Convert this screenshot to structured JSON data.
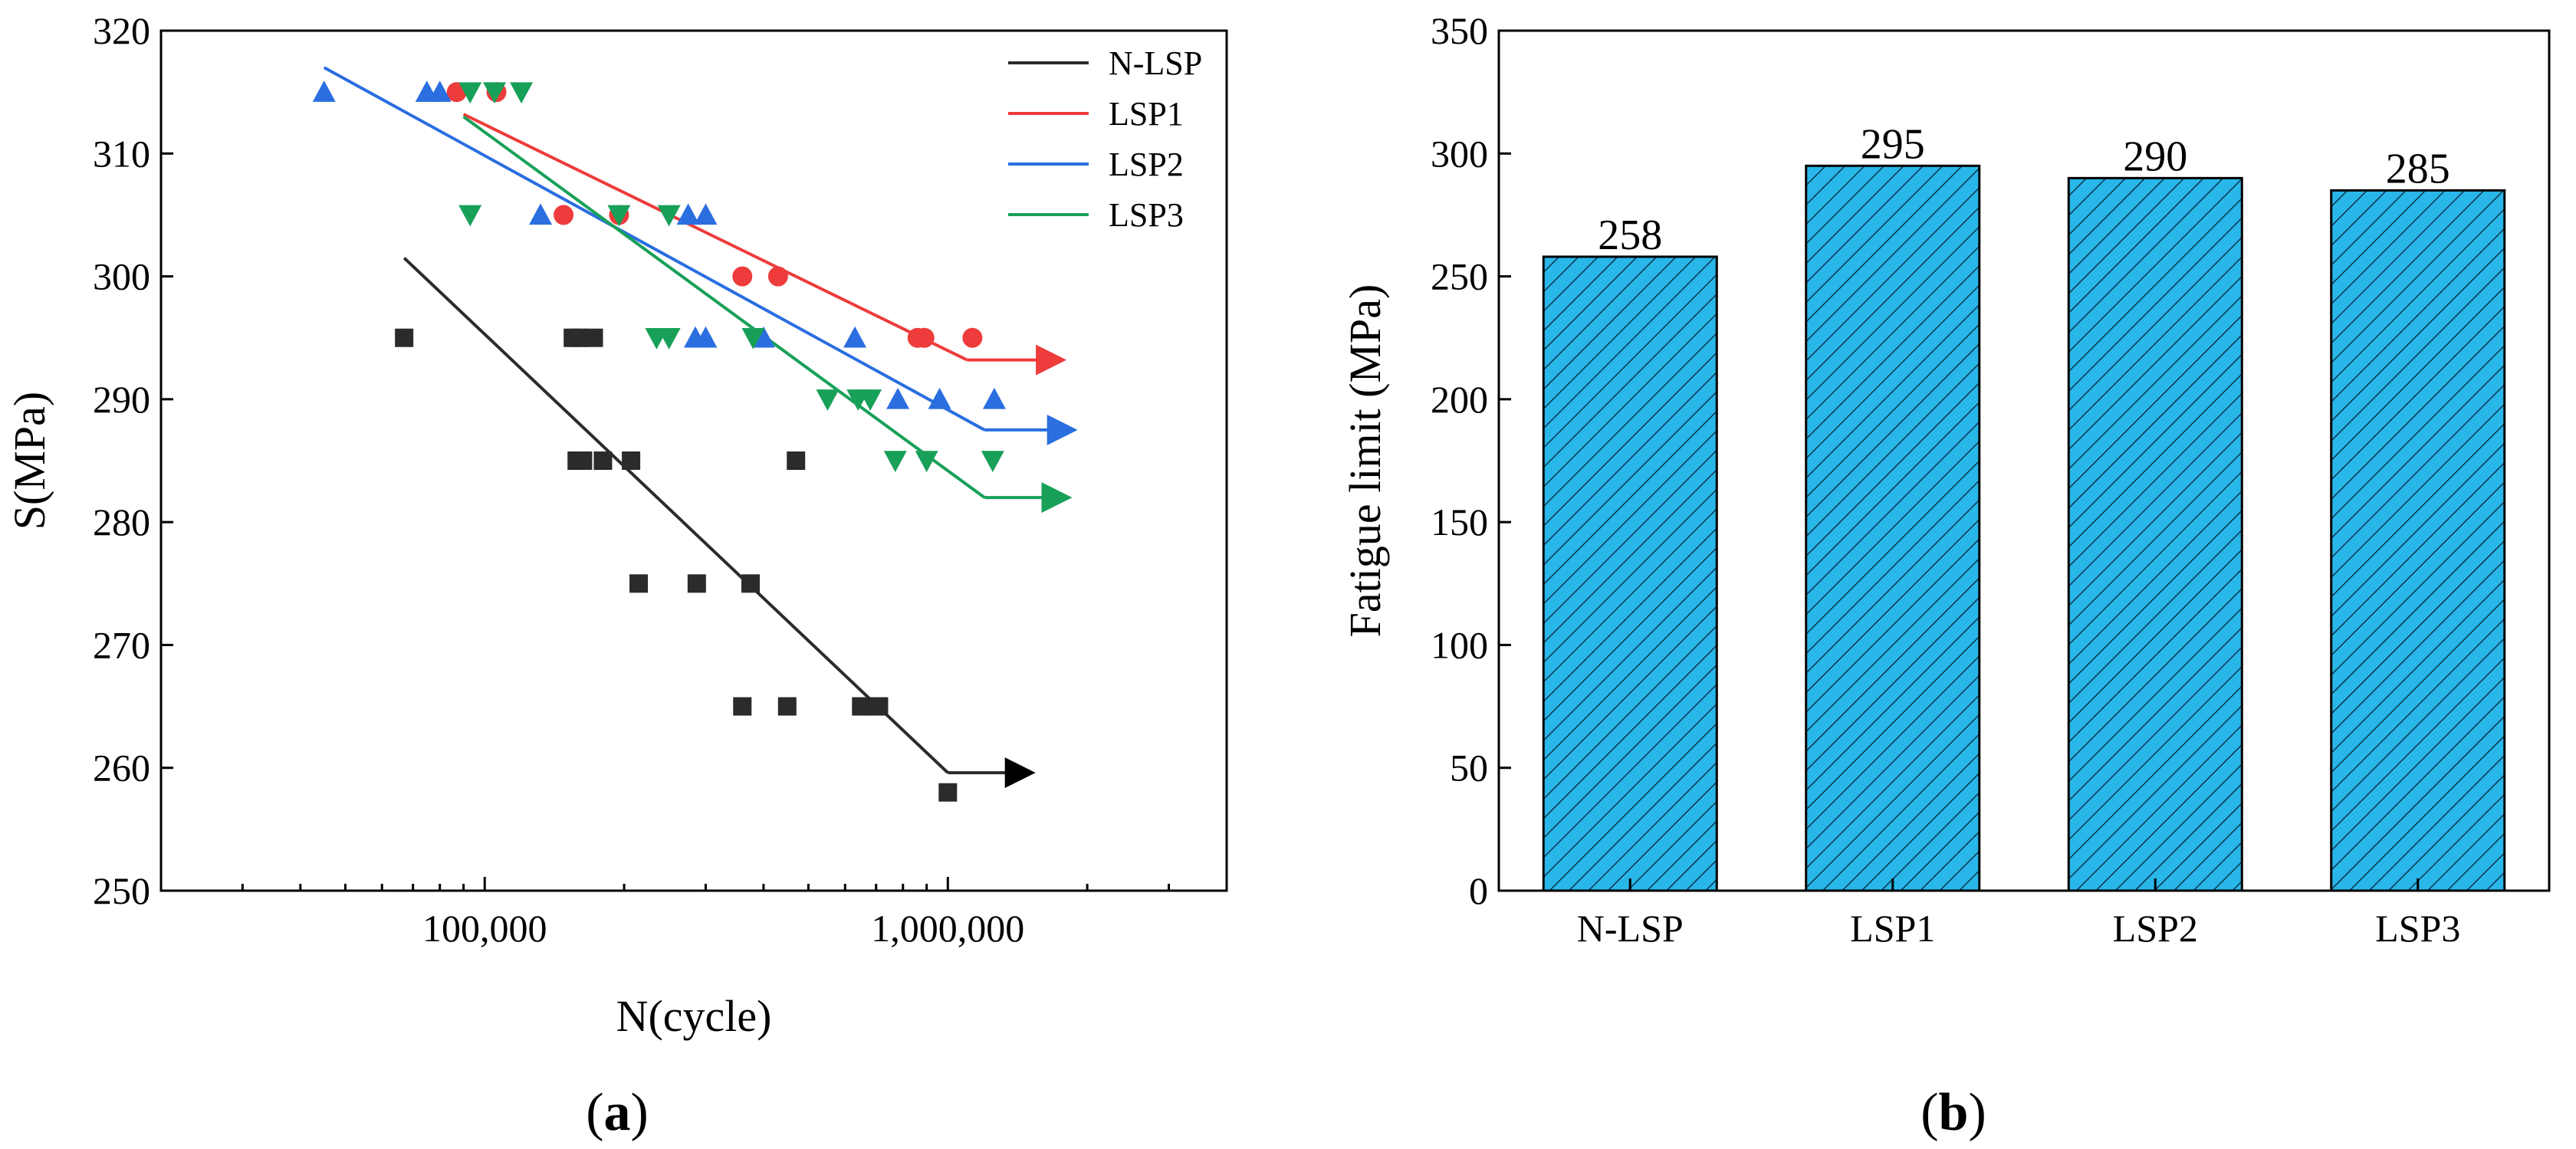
{
  "chart_data": [
    {
      "type": "scatter",
      "panel_label": "(a)",
      "panel_letter": "a",
      "xlabel": "N(cycle)",
      "ylabel": "S(MPa)",
      "xscale": "log",
      "xlim": [
        20000,
        4000000
      ],
      "ylim": [
        250,
        320
      ],
      "x_tick_values": [
        100000,
        1000000
      ],
      "x_tick_labels": [
        "100,000",
        "1,000,000"
      ],
      "y_ticks": [
        250,
        260,
        270,
        280,
        290,
        300,
        310,
        320
      ],
      "legend_position": "top-right",
      "series": [
        {
          "name": "N-LSP",
          "color": "#2b2b2b",
          "marker": "square",
          "points": [
            [
              67000,
              295
            ],
            [
              155000,
              295
            ],
            [
              160000,
              295
            ],
            [
              172000,
              295
            ],
            [
              158000,
              285
            ],
            [
              163000,
              285
            ],
            [
              180000,
              285
            ],
            [
              207000,
              285
            ],
            [
              470000,
              285
            ],
            [
              215000,
              275
            ],
            [
              287000,
              275
            ],
            [
              375000,
              275
            ],
            [
              360000,
              265
            ],
            [
              450000,
              265
            ],
            [
              650000,
              265
            ],
            [
              710000,
              265
            ],
            [
              1000000,
              258
            ]
          ],
          "fit": [
            [
              67000,
              301.5
            ],
            [
              1000000,
              259.6
            ]
          ],
          "runout": [
            [
              1000000,
              259.6
            ],
            [
              1500000,
              259.6
            ]
          ]
        },
        {
          "name": "LSP1",
          "color": "#ee3b3b",
          "marker": "circle",
          "points": [
            [
              87000,
              315
            ],
            [
              106000,
              315
            ],
            [
              148000,
              305
            ],
            [
              195000,
              305
            ],
            [
              360000,
              300
            ],
            [
              430000,
              300
            ],
            [
              860000,
              295
            ],
            [
              890000,
              295
            ],
            [
              1130000,
              295
            ]
          ],
          "fit": [
            [
              90000,
              313.2
            ],
            [
              1100000,
              293.2
            ]
          ],
          "runout": [
            [
              1100000,
              293.2
            ],
            [
              1750000,
              293.2
            ]
          ]
        },
        {
          "name": "LSP2",
          "color": "#2a6ee0",
          "marker": "triangle-up",
          "points": [
            [
              45000,
              315
            ],
            [
              75000,
              315
            ],
            [
              80000,
              315
            ],
            [
              132000,
              305
            ],
            [
              275000,
              305
            ],
            [
              300000,
              305
            ],
            [
              285000,
              295
            ],
            [
              300000,
              295
            ],
            [
              400000,
              295
            ],
            [
              630000,
              295
            ],
            [
              780000,
              290
            ],
            [
              960000,
              290
            ],
            [
              1260000,
              290
            ]
          ],
          "fit": [
            [
              45000,
              317
            ],
            [
              1200000,
              287.5
            ]
          ],
          "runout": [
            [
              1200000,
              287.5
            ],
            [
              1850000,
              287.5
            ]
          ]
        },
        {
          "name": "LSP3",
          "color": "#18a058",
          "marker": "triangle-down",
          "points": [
            [
              93000,
              315
            ],
            [
              105000,
              315
            ],
            [
              120000,
              315
            ],
            [
              93000,
              305
            ],
            [
              195000,
              305
            ],
            [
              250000,
              305
            ],
            [
              235000,
              295
            ],
            [
              250000,
              295
            ],
            [
              380000,
              295
            ],
            [
              550000,
              290
            ],
            [
              640000,
              290
            ],
            [
              680000,
              290
            ],
            [
              770000,
              285
            ],
            [
              900000,
              285
            ],
            [
              1250000,
              285
            ]
          ],
          "fit": [
            [
              90000,
              313
            ],
            [
              1200000,
              282
            ]
          ],
          "runout": [
            [
              1200000,
              282
            ],
            [
              1800000,
              282
            ]
          ]
        }
      ]
    },
    {
      "type": "bar",
      "panel_label": "(b)",
      "panel_letter": "b",
      "xlabel": "",
      "ylabel": "Fatigue limit (MPa)",
      "ylim": [
        0,
        350
      ],
      "y_ticks": [
        0,
        50,
        100,
        150,
        200,
        250,
        300,
        350
      ],
      "categories": [
        "N-LSP",
        "LSP1",
        "LSP2",
        "LSP3"
      ],
      "values": [
        258,
        295,
        290,
        285
      ],
      "data_labels": [
        "258",
        "295",
        "290",
        "285"
      ],
      "bar_fill": "#29b6e8",
      "bar_hatch": "diagonal",
      "bar_edge": "#000000"
    }
  ]
}
